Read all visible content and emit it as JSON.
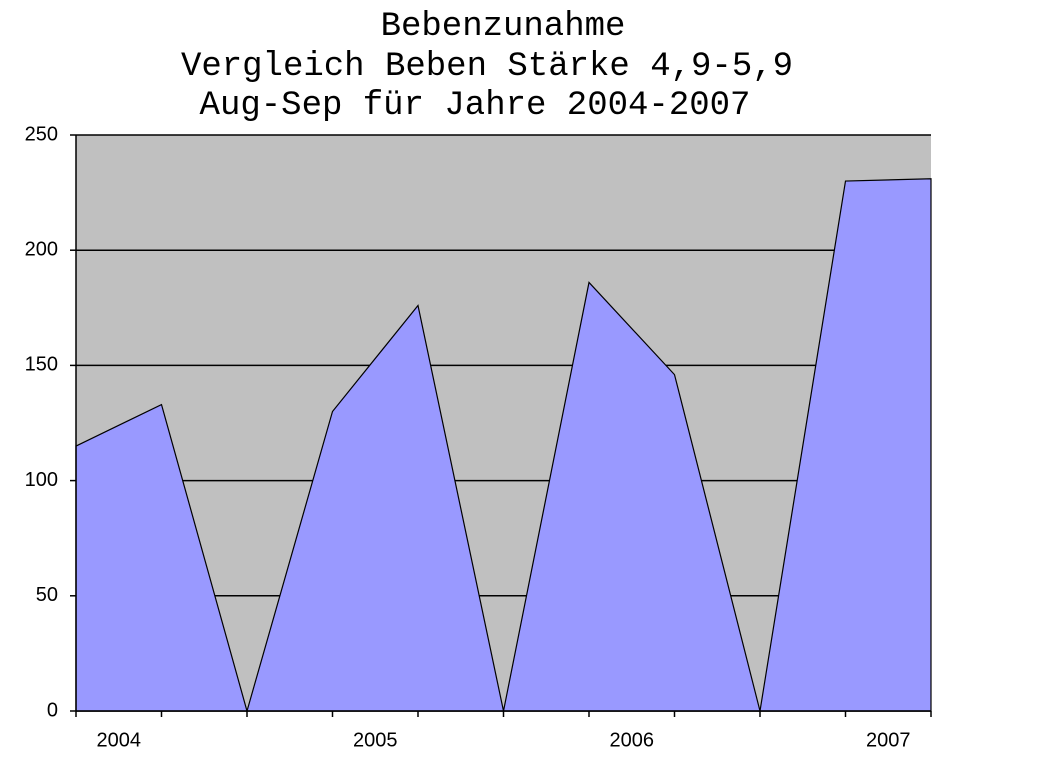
{
  "chart_data": {
    "type": "area",
    "title": [
      "Bebenzunahme",
      "Vergleich Beben Stärke 4,9-5,9",
      "Aug-Sep für Jahre 2004-2007"
    ],
    "categories": [
      "2004",
      null,
      null,
      "2005",
      null,
      null,
      "2006",
      null,
      null,
      "2007",
      null
    ],
    "values": [
      115,
      133,
      0,
      130,
      176,
      0,
      186,
      146,
      0,
      230,
      231
    ],
    "color": "#9999ff",
    "background": "#c0c0c0",
    "ylim": [
      0,
      250
    ],
    "yticks": [
      0,
      50,
      100,
      150,
      200,
      250
    ],
    "grid": true
  }
}
